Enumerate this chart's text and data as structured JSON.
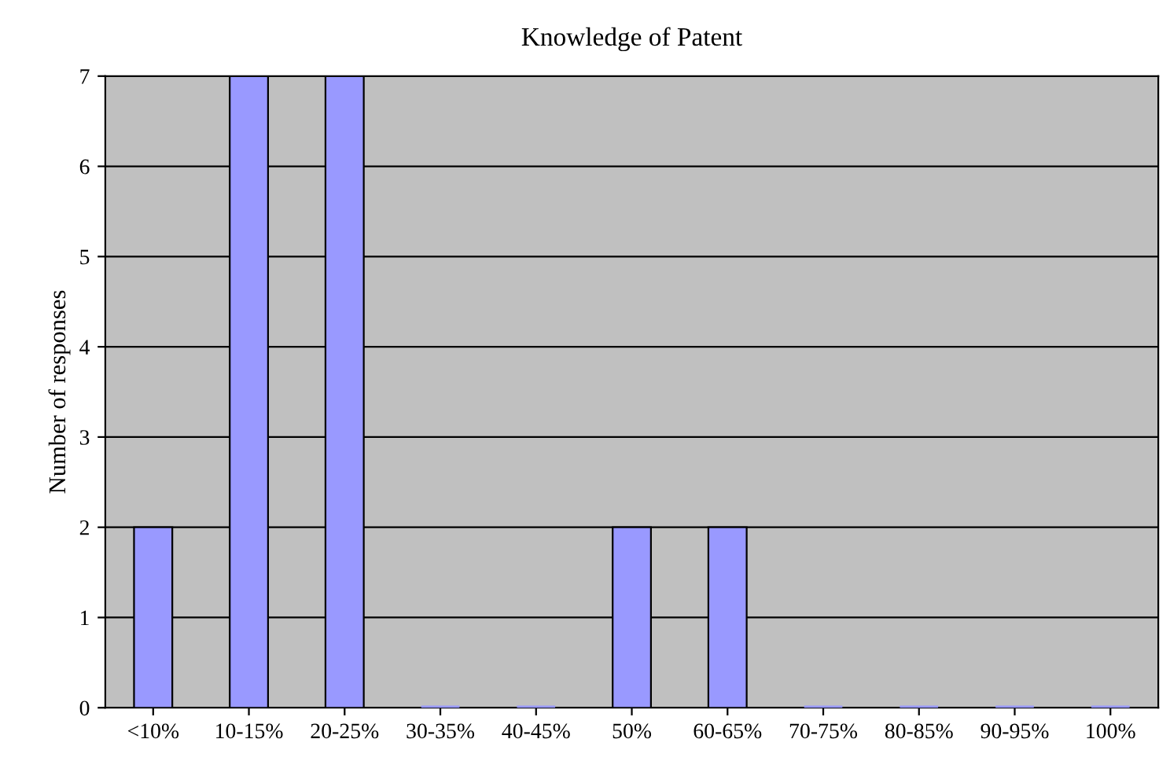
{
  "chart_data": {
    "type": "bar",
    "title": "Knowledge of Patent",
    "ylabel": "Number of responses",
    "categories": [
      "<10%",
      "10-15%",
      "20-25%",
      "30-35%",
      "40-45%",
      "50%",
      "60-65%",
      "70-75%",
      "80-85%",
      "90-95%",
      "100%"
    ],
    "values": [
      2,
      7,
      7,
      0,
      0,
      2,
      2,
      0,
      0,
      0,
      0
    ],
    "color": "#9999ff",
    "ylim": [
      0,
      7
    ],
    "yticks": [
      0,
      1,
      2,
      3,
      4,
      5,
      6,
      7
    ],
    "grid": "y",
    "legend": false
  }
}
